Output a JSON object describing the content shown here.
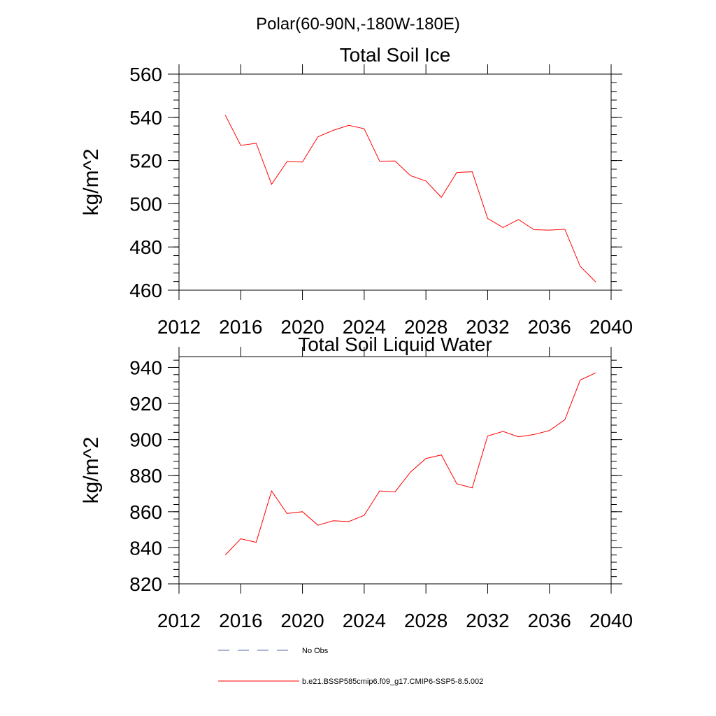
{
  "figure": {
    "title": "Polar(60-90N,-180W-180E)"
  },
  "chart_data": [
    {
      "type": "line",
      "title": "Total Soil Ice",
      "xlabel": "",
      "ylabel": "kg/m^2",
      "xlim": [
        2012,
        2040
      ],
      "ylim": [
        460,
        560
      ],
      "x_ticks": [
        2012,
        2016,
        2020,
        2024,
        2028,
        2032,
        2036,
        2040
      ],
      "y_ticks": [
        460,
        480,
        500,
        520,
        540,
        560
      ],
      "x_tick_labels": [
        "2012",
        "2016",
        "2020",
        "2024",
        "2028",
        "2032",
        "2036",
        "2040"
      ],
      "y_tick_labels": [
        "460",
        "480",
        "500",
        "520",
        "540",
        "560"
      ],
      "grid": false,
      "series": [
        {
          "name": "b.e21.BSSP585cmip6.f09_g17.CMIP6-SSP5-8.5.002",
          "color": "#ff0000",
          "x": [
            2015,
            2016,
            2017,
            2018,
            2019,
            2020,
            2021,
            2022,
            2023,
            2024,
            2025,
            2026,
            2027,
            2028,
            2029,
            2030,
            2031,
            2032,
            2033,
            2034,
            2035,
            2036,
            2037,
            2038,
            2039
          ],
          "values": [
            541,
            527,
            528,
            509,
            519.5,
            519.3,
            531,
            534,
            536.3,
            534.7,
            519.7,
            519.8,
            513,
            510.5,
            503,
            514.5,
            514.8,
            493.2,
            489,
            492.7,
            488,
            487.8,
            488.2,
            471,
            463.8
          ]
        }
      ]
    },
    {
      "type": "line",
      "title": "Total Soil Liquid Water",
      "xlabel": "",
      "ylabel": "kg/m^2",
      "xlim": [
        2012,
        2040
      ],
      "ylim": [
        820,
        946
      ],
      "x_ticks": [
        2012,
        2016,
        2020,
        2024,
        2028,
        2032,
        2036,
        2040
      ],
      "y_ticks": [
        820,
        840,
        860,
        880,
        900,
        920,
        940
      ],
      "x_tick_labels": [
        "2012",
        "2016",
        "2020",
        "2024",
        "2028",
        "2032",
        "2036",
        "2040"
      ],
      "y_tick_labels": [
        "820",
        "840",
        "860",
        "880",
        "900",
        "920",
        "940"
      ],
      "grid": false,
      "series": [
        {
          "name": "b.e21.BSSP585cmip6.f09_g17.CMIP6-SSP5-8.5.002",
          "color": "#ff0000",
          "x": [
            2015,
            2016,
            2017,
            2018,
            2019,
            2020,
            2021,
            2022,
            2023,
            2024,
            2025,
            2026,
            2027,
            2028,
            2029,
            2030,
            2031,
            2032,
            2033,
            2034,
            2035,
            2036,
            2037,
            2038,
            2039
          ],
          "values": [
            836,
            845,
            843,
            871.5,
            859,
            860,
            852.5,
            855,
            854.5,
            858,
            871.5,
            871,
            882,
            889.5,
            891.5,
            875.5,
            873.2,
            902,
            904.5,
            901.5,
            902.8,
            905,
            911,
            933,
            937
          ]
        }
      ]
    }
  ],
  "legend": {
    "placement": "bottom-center",
    "items": [
      {
        "label": "No Obs",
        "style": "dashed",
        "color": "#5a6aa8"
      },
      {
        "label": "b.e21.BSSP585cmip6.f09_g17.CMIP6-SSP5-8.5.002",
        "style": "solid",
        "color": "#ff0000"
      }
    ]
  }
}
